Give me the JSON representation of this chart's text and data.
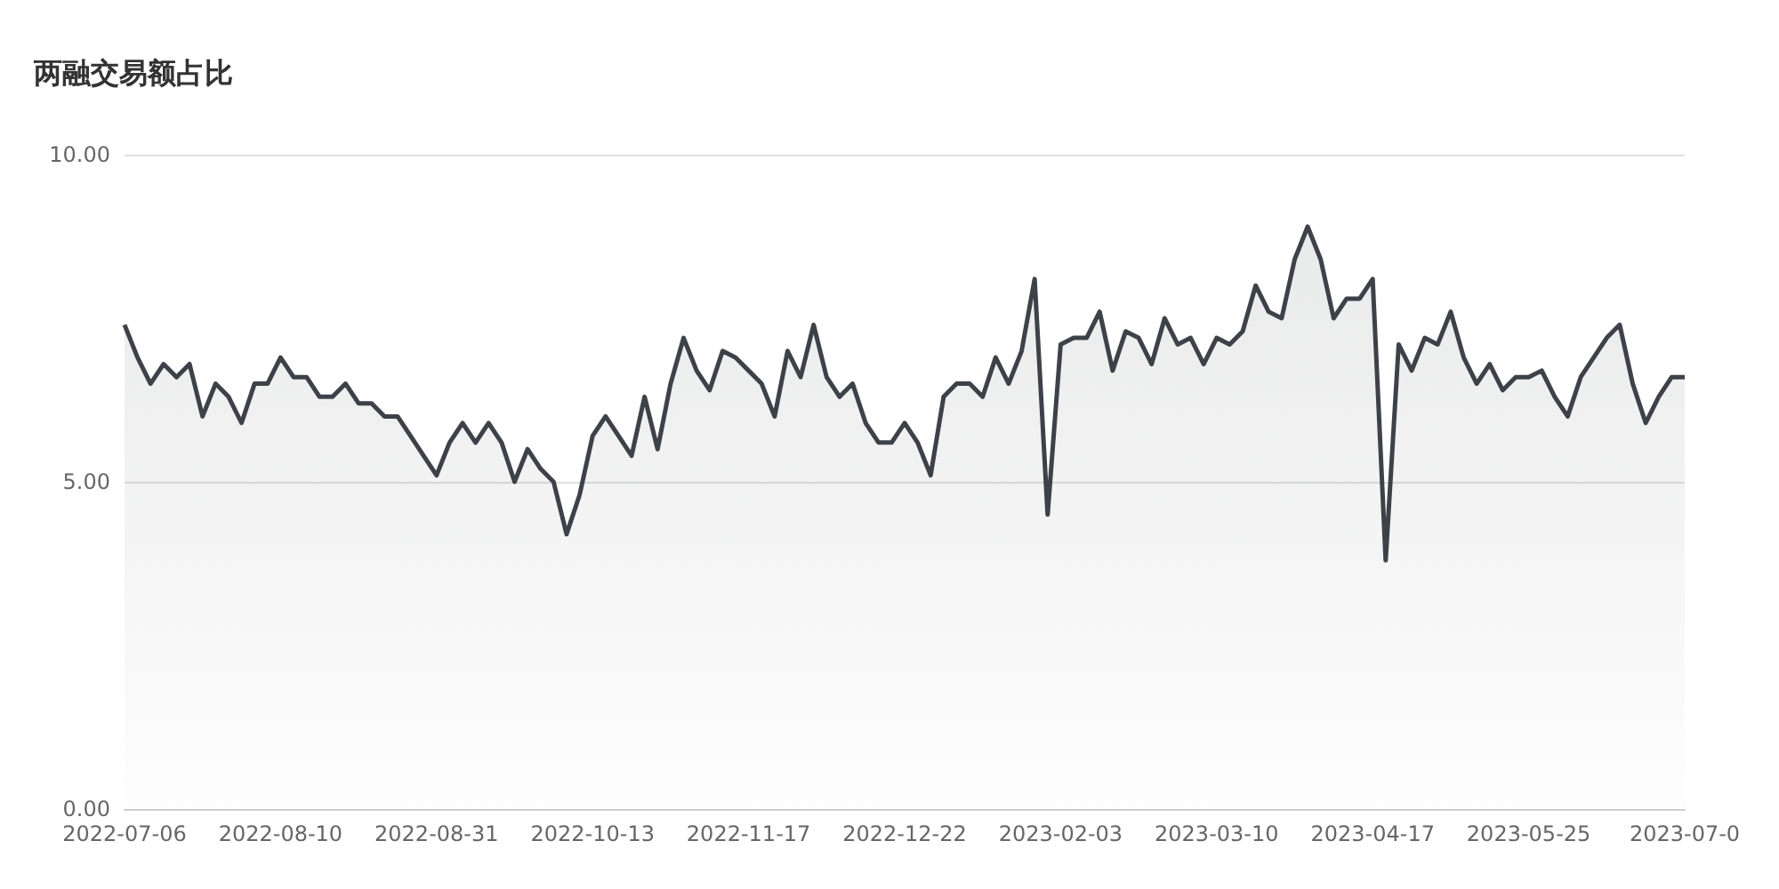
{
  "chart_data": {
    "type": "area",
    "title": "两融交易额占比",
    "categories": [
      "2022-07-06",
      null,
      null,
      null,
      null,
      null,
      null,
      null,
      null,
      null,
      null,
      null,
      "2022-08-10",
      null,
      null,
      null,
      null,
      null,
      null,
      null,
      null,
      null,
      null,
      null,
      "2022-08-31",
      null,
      null,
      null,
      null,
      null,
      null,
      null,
      null,
      null,
      null,
      null,
      "2022-10-13",
      null,
      null,
      null,
      null,
      null,
      null,
      null,
      null,
      null,
      null,
      null,
      "2022-11-17",
      null,
      null,
      null,
      null,
      null,
      null,
      null,
      null,
      null,
      null,
      null,
      "2022-12-22",
      null,
      null,
      null,
      null,
      null,
      null,
      null,
      null,
      null,
      null,
      null,
      "2023-02-03",
      null,
      null,
      null,
      null,
      null,
      null,
      null,
      null,
      null,
      null,
      null,
      "2023-03-10",
      null,
      null,
      null,
      null,
      null,
      null,
      null,
      null,
      null,
      null,
      null,
      "2023-04-17",
      null,
      null,
      null,
      null,
      null,
      null,
      null,
      null,
      null,
      null,
      null,
      "2023-05-25",
      null,
      null,
      null,
      null,
      null,
      null,
      null,
      null,
      null,
      null,
      null,
      "2023-07-0"
    ],
    "series": [
      {
        "color": "#3d4249",
        "values": [
          7.4,
          6.9,
          6.5,
          6.8,
          6.6,
          6.8,
          6.0,
          6.5,
          6.3,
          5.9,
          6.5,
          6.5,
          6.9,
          6.6,
          6.6,
          6.3,
          6.3,
          6.5,
          6.2,
          6.2,
          6.0,
          6.0,
          5.7,
          5.4,
          5.1,
          5.6,
          5.9,
          5.6,
          5.9,
          5.6,
          5.0,
          5.5,
          5.2,
          5.0,
          4.2,
          4.8,
          5.7,
          6.0,
          5.7,
          5.4,
          6.3,
          5.5,
          6.5,
          7.2,
          6.7,
          6.4,
          7.0,
          6.9,
          6.7,
          6.5,
          6.0,
          7.0,
          6.6,
          7.4,
          6.6,
          6.3,
          6.5,
          5.9,
          5.6,
          5.6,
          5.9,
          5.6,
          5.1,
          6.3,
          6.5,
          6.5,
          6.3,
          6.9,
          6.5,
          7.0,
          8.1,
          4.5,
          7.1,
          7.2,
          7.2,
          7.6,
          6.7,
          7.3,
          7.2,
          6.8,
          7.5,
          7.1,
          7.2,
          6.8,
          7.2,
          7.1,
          7.3,
          8.0,
          7.6,
          7.5,
          8.4,
          8.9,
          8.4,
          7.5,
          7.8,
          7.8,
          8.1,
          3.8,
          7.1,
          6.7,
          7.2,
          7.1,
          7.6,
          6.9,
          6.5,
          6.8,
          6.4,
          6.6,
          6.6,
          6.7,
          6.3,
          6.0,
          6.6,
          6.9,
          7.2,
          7.4,
          6.5,
          5.9,
          6.3,
          6.6,
          6.6
        ]
      }
    ],
    "ylim": [
      0,
      10
    ],
    "yticks": [
      {
        "value": 0,
        "label": "0.00"
      },
      {
        "value": 5,
        "label": "5.00"
      },
      {
        "value": 10,
        "label": "10.00"
      }
    ],
    "grid": "y"
  }
}
